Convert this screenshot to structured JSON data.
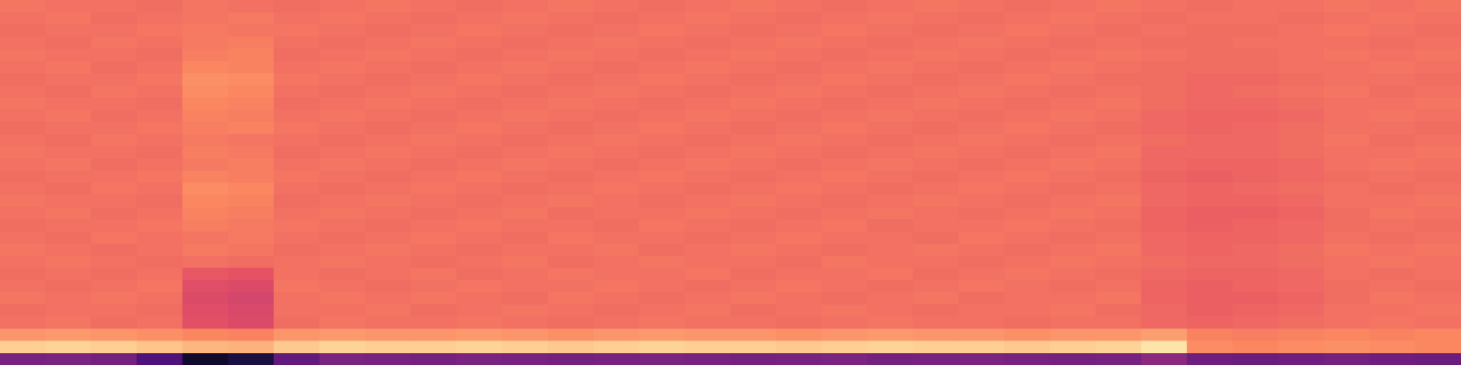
{
  "chart_data": {
    "type": "heatmap",
    "x": [
      null,
      null,
      null,
      null,
      null,
      null,
      null,
      null,
      null,
      null,
      null,
      null,
      null,
      null,
      null,
      null,
      null,
      null,
      null,
      null,
      null,
      null,
      null,
      null,
      null,
      null,
      null,
      null,
      null,
      null,
      null,
      null
    ],
    "y": [
      null,
      null,
      null,
      null,
      null,
      null,
      null,
      null,
      null,
      null,
      null,
      null,
      null,
      null,
      null,
      null,
      null,
      null,
      null,
      null,
      null,
      null,
      null,
      null,
      null,
      null,
      null,
      null,
      null,
      null
    ],
    "color_range": [
      0,
      100
    ],
    "tick_labels": false,
    "grid": false,
    "cells": [
      [
        35,
        36,
        34,
        25,
        8,
        12,
        30,
        36,
        35,
        34,
        36,
        35,
        34,
        35,
        36,
        35,
        34,
        35,
        36,
        34,
        35,
        36,
        35,
        34,
        35,
        40,
        33,
        32,
        33,
        34,
        33,
        32
      ],
      [
        90,
        91,
        90,
        88,
        85,
        84,
        89,
        91,
        90,
        90,
        91,
        90,
        89,
        90,
        91,
        90,
        90,
        89,
        90,
        91,
        90,
        90,
        89,
        90,
        91,
        95,
        76,
        75,
        76,
        77,
        76,
        75
      ],
      [
        78,
        79,
        78,
        77,
        75,
        74,
        78,
        79,
        78,
        78,
        79,
        78,
        77,
        78,
        79,
        78,
        78,
        77,
        78,
        79,
        78,
        78,
        77,
        78,
        78,
        80,
        74,
        73,
        74,
        75,
        74,
        75
      ],
      [
        70,
        71,
        69,
        70,
        62,
        60,
        69,
        71,
        70,
        70,
        71,
        70,
        69,
        70,
        71,
        70,
        70,
        69,
        70,
        71,
        70,
        70,
        69,
        70,
        70,
        68,
        67,
        68,
        69,
        70,
        71,
        70
      ],
      [
        69,
        70,
        70,
        69,
        61,
        59,
        70,
        70,
        71,
        69,
        70,
        71,
        70,
        69,
        70,
        71,
        69,
        70,
        71,
        70,
        69,
        70,
        70,
        71,
        69,
        68,
        66,
        67,
        68,
        70,
        70,
        71
      ],
      [
        71,
        70,
        71,
        70,
        60,
        58,
        70,
        71,
        70,
        71,
        70,
        69,
        71,
        70,
        69,
        70,
        71,
        70,
        69,
        70,
        71,
        69,
        70,
        70,
        71,
        67,
        66,
        66,
        67,
        69,
        71,
        70
      ],
      [
        70,
        69,
        70,
        71,
        61,
        60,
        71,
        70,
        69,
        70,
        71,
        70,
        70,
        71,
        70,
        69,
        70,
        71,
        70,
        69,
        70,
        71,
        70,
        69,
        70,
        67,
        66,
        67,
        68,
        69,
        70,
        69
      ],
      [
        69,
        70,
        69,
        70,
        64,
        63,
        70,
        69,
        70,
        71,
        69,
        70,
        71,
        70,
        70,
        71,
        69,
        70,
        70,
        71,
        69,
        70,
        71,
        70,
        69,
        68,
        67,
        67,
        68,
        70,
        69,
        70
      ],
      [
        70,
        71,
        70,
        69,
        70,
        69,
        70,
        71,
        70,
        69,
        70,
        71,
        69,
        70,
        71,
        70,
        70,
        69,
        71,
        70,
        70,
        69,
        70,
        71,
        70,
        69,
        68,
        68,
        69,
        70,
        71,
        70
      ],
      [
        71,
        70,
        69,
        70,
        72,
        71,
        69,
        70,
        71,
        70,
        69,
        70,
        70,
        71,
        69,
        70,
        71,
        70,
        69,
        70,
        71,
        70,
        69,
        70,
        71,
        68,
        67,
        68,
        69,
        71,
        70,
        71
      ],
      [
        70,
        69,
        71,
        70,
        71,
        72,
        70,
        69,
        70,
        71,
        70,
        69,
        71,
        70,
        70,
        69,
        70,
        71,
        70,
        70,
        69,
        71,
        70,
        69,
        70,
        68,
        67,
        67,
        68,
        70,
        69,
        70
      ],
      [
        69,
        70,
        70,
        71,
        73,
        72,
        71,
        70,
        69,
        70,
        71,
        70,
        70,
        69,
        71,
        70,
        69,
        70,
        71,
        69,
        70,
        70,
        71,
        70,
        69,
        67,
        66,
        67,
        68,
        69,
        70,
        69
      ],
      [
        70,
        71,
        69,
        70,
        74,
        73,
        70,
        71,
        70,
        69,
        70,
        71,
        69,
        70,
        70,
        71,
        70,
        69,
        70,
        71,
        70,
        69,
        70,
        71,
        70,
        67,
        66,
        66,
        67,
        69,
        71,
        70
      ],
      [
        71,
        70,
        70,
        69,
        75,
        74,
        69,
        70,
        71,
        70,
        69,
        70,
        71,
        70,
        69,
        70,
        71,
        70,
        69,
        70,
        71,
        70,
        69,
        70,
        71,
        68,
        67,
        67,
        68,
        70,
        70,
        71
      ],
      [
        70,
        69,
        71,
        70,
        76,
        75,
        70,
        69,
        70,
        71,
        70,
        69,
        70,
        71,
        70,
        69,
        70,
        71,
        70,
        69,
        70,
        71,
        70,
        69,
        70,
        68,
        67,
        68,
        69,
        70,
        69,
        70
      ],
      [
        69,
        70,
        70,
        71,
        74,
        73,
        71,
        70,
        69,
        70,
        71,
        70,
        69,
        70,
        71,
        70,
        69,
        70,
        71,
        70,
        69,
        70,
        71,
        70,
        69,
        67,
        66,
        67,
        68,
        69,
        70,
        69
      ],
      [
        70,
        71,
        69,
        70,
        72,
        73,
        70,
        71,
        70,
        69,
        70,
        71,
        70,
        69,
        70,
        71,
        70,
        69,
        70,
        71,
        70,
        69,
        70,
        71,
        70,
        68,
        67,
        67,
        68,
        70,
        71,
        70
      ],
      [
        71,
        70,
        70,
        69,
        73,
        72,
        69,
        70,
        71,
        70,
        69,
        70,
        71,
        70,
        69,
        70,
        71,
        70,
        69,
        70,
        71,
        70,
        69,
        70,
        71,
        68,
        68,
        68,
        69,
        70,
        70,
        71
      ],
      [
        70,
        69,
        71,
        70,
        72,
        71,
        70,
        69,
        70,
        71,
        70,
        69,
        70,
        71,
        70,
        69,
        70,
        71,
        70,
        69,
        70,
        71,
        70,
        69,
        70,
        69,
        68,
        68,
        69,
        71,
        69,
        70
      ],
      [
        69,
        70,
        70,
        71,
        73,
        74,
        71,
        70,
        69,
        70,
        71,
        70,
        69,
        70,
        71,
        70,
        69,
        70,
        71,
        70,
        69,
        70,
        71,
        70,
        69,
        68,
        67,
        68,
        69,
        70,
        70,
        69
      ],
      [
        70,
        71,
        69,
        70,
        74,
        73,
        70,
        71,
        70,
        69,
        70,
        71,
        70,
        69,
        70,
        71,
        70,
        69,
        70,
        71,
        70,
        69,
        70,
        71,
        70,
        68,
        67,
        67,
        68,
        70,
        71,
        70
      ],
      [
        71,
        70,
        70,
        69,
        75,
        74,
        69,
        70,
        71,
        70,
        69,
        70,
        71,
        70,
        69,
        70,
        71,
        70,
        69,
        70,
        71,
        70,
        69,
        70,
        71,
        69,
        68,
        68,
        69,
        70,
        70,
        71
      ],
      [
        70,
        69,
        71,
        70,
        76,
        75,
        70,
        69,
        70,
        71,
        70,
        69,
        70,
        71,
        70,
        69,
        70,
        71,
        70,
        69,
        70,
        71,
        70,
        69,
        70,
        69,
        68,
        69,
        70,
        71,
        69,
        70
      ],
      [
        69,
        70,
        70,
        71,
        77,
        76,
        71,
        70,
        69,
        70,
        71,
        70,
        69,
        70,
        71,
        70,
        69,
        70,
        71,
        70,
        69,
        70,
        71,
        70,
        69,
        69,
        68,
        68,
        69,
        70,
        70,
        69
      ],
      [
        70,
        71,
        69,
        70,
        75,
        74,
        70,
        71,
        70,
        69,
        70,
        71,
        70,
        69,
        70,
        71,
        70,
        69,
        70,
        71,
        70,
        69,
        70,
        71,
        70,
        69,
        69,
        69,
        70,
        70,
        71,
        70
      ],
      [
        71,
        70,
        70,
        69,
        73,
        74,
        69,
        70,
        71,
        70,
        69,
        70,
        71,
        70,
        69,
        70,
        71,
        70,
        69,
        70,
        71,
        70,
        69,
        70,
        71,
        70,
        69,
        69,
        70,
        71,
        70,
        71
      ],
      [
        70,
        69,
        71,
        70,
        72,
        73,
        70,
        69,
        70,
        71,
        70,
        69,
        70,
        71,
        70,
        69,
        70,
        71,
        70,
        69,
        70,
        71,
        70,
        69,
        70,
        69,
        69,
        70,
        70,
        70,
        69,
        70
      ],
      [
        69,
        70,
        70,
        71,
        72,
        71,
        71,
        70,
        69,
        70,
        71,
        70,
        69,
        70,
        71,
        70,
        69,
        70,
        71,
        70,
        69,
        70,
        71,
        70,
        69,
        70,
        69,
        69,
        70,
        71,
        70,
        69
      ],
      [
        70,
        71,
        69,
        70,
        71,
        72,
        70,
        71,
        70,
        69,
        70,
        71,
        70,
        69,
        70,
        71,
        70,
        69,
        70,
        71,
        70,
        69,
        70,
        71,
        70,
        69,
        70,
        70,
        69,
        70,
        71,
        70
      ],
      [
        71,
        70,
        70,
        69,
        71,
        70,
        69,
        70,
        71,
        70,
        69,
        70,
        71,
        70,
        69,
        70,
        71,
        70,
        69,
        70,
        71,
        70,
        69,
        70,
        71,
        70,
        69,
        70,
        70,
        71,
        70,
        71
      ]
    ]
  }
}
